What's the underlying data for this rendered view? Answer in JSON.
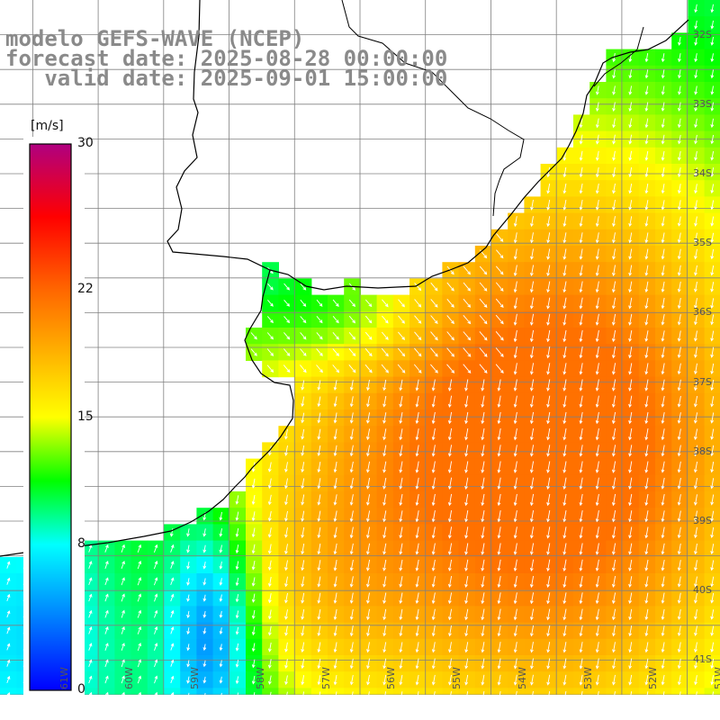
{
  "title": {
    "line1": "modelo GEFS-WAVE (NCEP)",
    "line2": "forecast date: 2025-08-28 00:00:00",
    "line3": "   valid date: 2025-09-01 15:00:00"
  },
  "colorbar": {
    "unit": "[m/s]",
    "ticks": [
      "30",
      "22",
      "15",
      "8",
      "0"
    ],
    "tick_values": [
      30,
      22,
      15,
      8,
      0
    ],
    "range": [
      0,
      30
    ],
    "stops": [
      {
        "v": 0,
        "color": "#0000ff"
      },
      {
        "v": 4,
        "color": "#0080ff"
      },
      {
        "v": 8,
        "color": "#00ffff"
      },
      {
        "v": 11.5,
        "color": "#00ff00"
      },
      {
        "v": 15,
        "color": "#ffff00"
      },
      {
        "v": 22,
        "color": "#ff6600"
      },
      {
        "v": 26,
        "color": "#ff0000"
      },
      {
        "v": 30,
        "color": "#b00080"
      }
    ]
  },
  "map": {
    "lon_range": [
      -62,
      -51
    ],
    "lat_range": [
      -41.5,
      -31.5
    ],
    "lat_labels": [
      "32S",
      "33S",
      "34S",
      "35S",
      "36S",
      "37S",
      "38S",
      "39S",
      "40S",
      "41S"
    ],
    "lat_values": [
      -32,
      -33,
      -34,
      -35,
      -36,
      -37,
      -38,
      -39,
      -40,
      -41
    ],
    "lon_labels": [
      "61W",
      "60W",
      "59W",
      "58W",
      "57W",
      "56W",
      "55W",
      "54W",
      "53W",
      "52W",
      "51W"
    ],
    "lon_values": [
      -61,
      -60,
      -59,
      -58,
      -57,
      -56,
      -55,
      -54,
      -53,
      -52,
      -51
    ],
    "land_color": "#ffffff",
    "coast_color": "#000000",
    "grid_color": "#808080",
    "arrow_color": "#ffffff"
  }
}
